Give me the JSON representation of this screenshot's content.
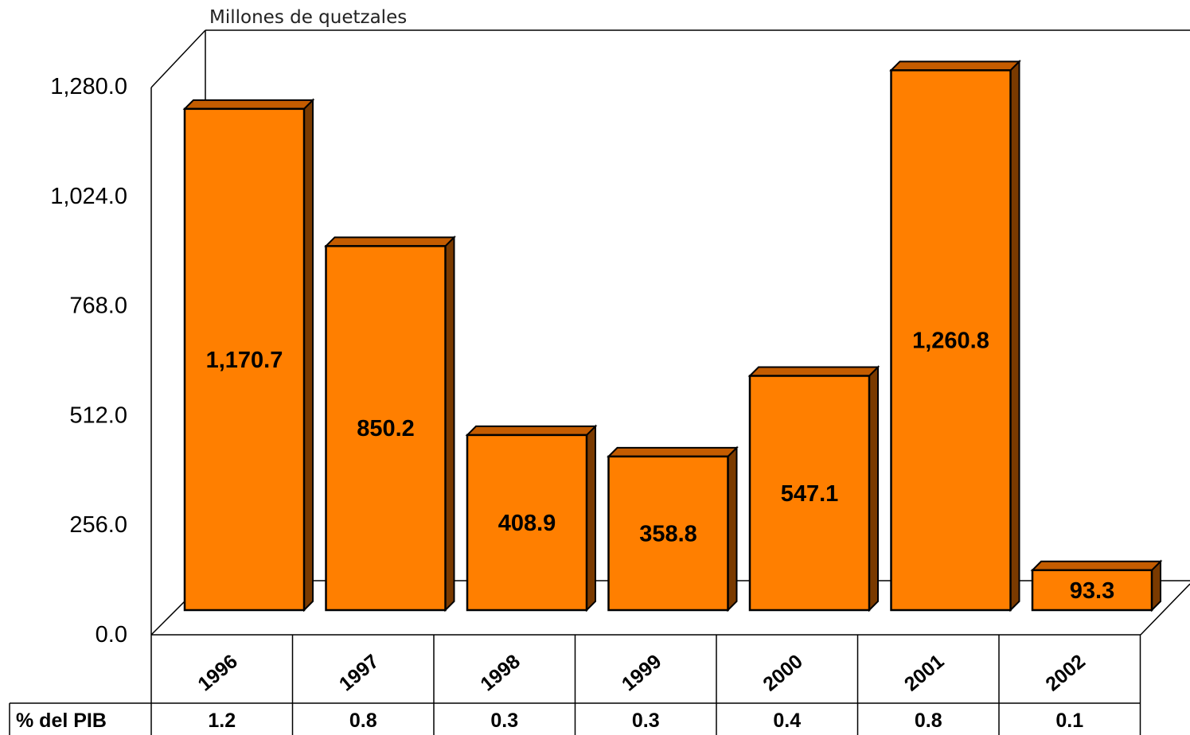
{
  "chart_data": {
    "type": "bar",
    "title": "",
    "unit_label": "Millones de quetzales",
    "categories": [
      "1996",
      "1997",
      "1998",
      "1999",
      "2000",
      "2001",
      "2002"
    ],
    "values": [
      1170.7,
      850.2,
      408.9,
      358.8,
      547.1,
      1260.8,
      93.3
    ],
    "value_labels": [
      "1,170.7",
      "850.2",
      "408.9",
      "358.8",
      "547.1",
      "1,260.8",
      "93.3"
    ],
    "ylim": [
      0,
      1280
    ],
    "yticks": [
      0,
      256,
      512,
      768,
      1024,
      1280
    ],
    "ytick_labels": [
      "0.0",
      "256.0",
      "512.0",
      "768.0",
      "1,024.0",
      "1,280.0"
    ],
    "bar_color": "#ff7f00",
    "bar_side_color": "#7a3a00",
    "bar_top_color": "#c45c00",
    "grid": false,
    "legend": "none",
    "data_table": {
      "row_label": "% del PIB",
      "values": [
        "1.2",
        "0.8",
        "0.3",
        "0.3",
        "0.4",
        "0.8",
        "0.1"
      ]
    }
  }
}
